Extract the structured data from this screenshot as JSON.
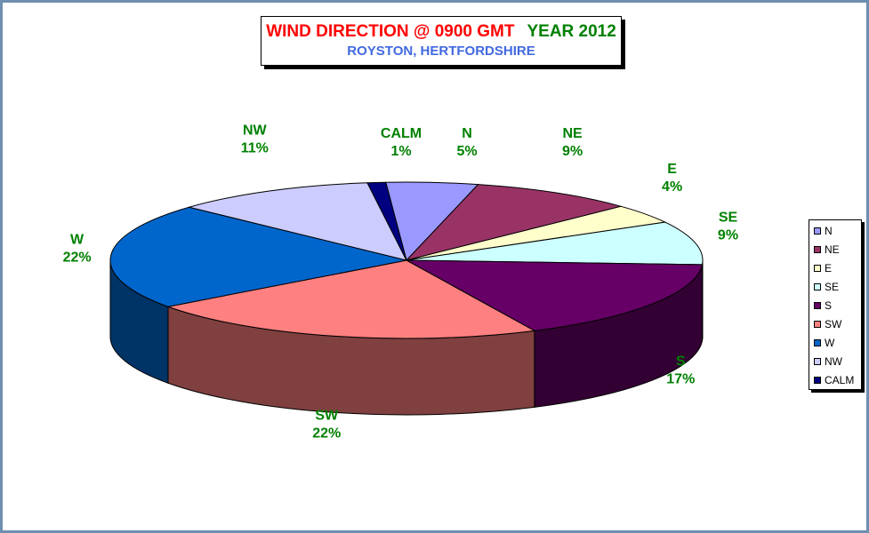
{
  "title": {
    "main": "WIND DIRECTION @ 0900 GMT",
    "year": "YEAR 2012",
    "subtitle": "ROYSTON, HERTFORDSHIRE"
  },
  "chart_data": {
    "type": "pie",
    "categories": [
      "N",
      "NE",
      "E",
      "SE",
      "S",
      "SW",
      "W",
      "NW",
      "CALM"
    ],
    "values": [
      5,
      9,
      4,
      9,
      17,
      22,
      22,
      11,
      1
    ],
    "value_labels": [
      "5%",
      "9%",
      "4%",
      "9%",
      "17%",
      "22%",
      "22%",
      "11%",
      "1%"
    ],
    "colors": [
      "#9999ff",
      "#993366",
      "#ffffcc",
      "#ccffff",
      "#660066",
      "#ff8080",
      "#0066cc",
      "#ccccff",
      "#000080"
    ],
    "legend_position": "right"
  }
}
